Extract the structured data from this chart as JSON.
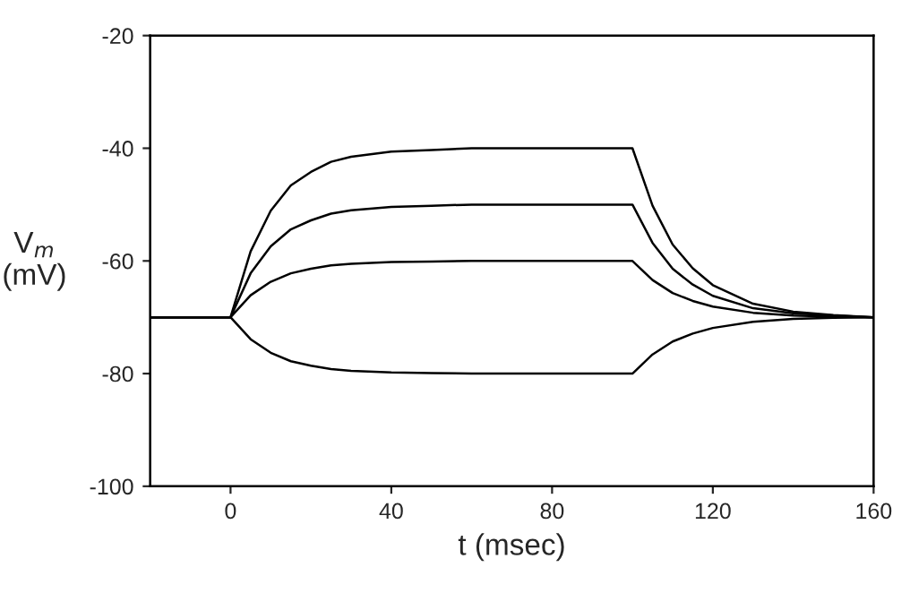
{
  "chart_data": {
    "type": "line",
    "xlabel": "t (msec)",
    "ylabel": "V$_{m}$\n(mV)",
    "x": [
      -20,
      0,
      5,
      10,
      15,
      20,
      25,
      30,
      40,
      50,
      60,
      80,
      100,
      105,
      110,
      115,
      120,
      130,
      140,
      150,
      160
    ],
    "series": [
      {
        "color": "#000000",
        "values": [
          -70,
          -70,
          -58.3,
          -51.1,
          -46.6,
          -44.2,
          -42.4,
          -41.5,
          -40.6,
          -40.3,
          -40,
          -40,
          -40,
          -50.2,
          -57.1,
          -61.3,
          -64.3,
          -67.6,
          -69,
          -69.6,
          -70
        ]
      },
      {
        "color": "#000000",
        "values": [
          -70,
          -70,
          -62.2,
          -57.4,
          -54.4,
          -52.8,
          -51.6,
          -51,
          -50.4,
          -50.2,
          -50,
          -50,
          -50,
          -56.8,
          -61.4,
          -64.2,
          -66.2,
          -68.4,
          -69.3,
          -69.7,
          -70
        ]
      },
      {
        "color": "#000000",
        "values": [
          -70,
          -70,
          -66.1,
          -63.7,
          -62.2,
          -61.4,
          -60.8,
          -60.5,
          -60.2,
          -60.1,
          -60,
          -60,
          -60,
          -63.4,
          -65.7,
          -67.1,
          -68.1,
          -69.2,
          -69.7,
          -69.9,
          -70
        ]
      },
      {
        "color": "#000000",
        "values": [
          -70,
          -70,
          -73.9,
          -76.3,
          -77.8,
          -78.6,
          -79.2,
          -79.5,
          -79.8,
          -79.9,
          -80,
          -80,
          -80,
          -76.6,
          -74.3,
          -72.9,
          -71.9,
          -70.8,
          -70.3,
          -70.1,
          -70
        ]
      }
    ],
    "xlim": [
      -20,
      160
    ],
    "xticks": [
      0,
      40,
      80,
      120,
      160
    ],
    "ylim": [
      -100,
      -20
    ],
    "yticks": [
      -100,
      -80,
      -60,
      -40,
      -20
    ],
    "line_style": "solid"
  }
}
